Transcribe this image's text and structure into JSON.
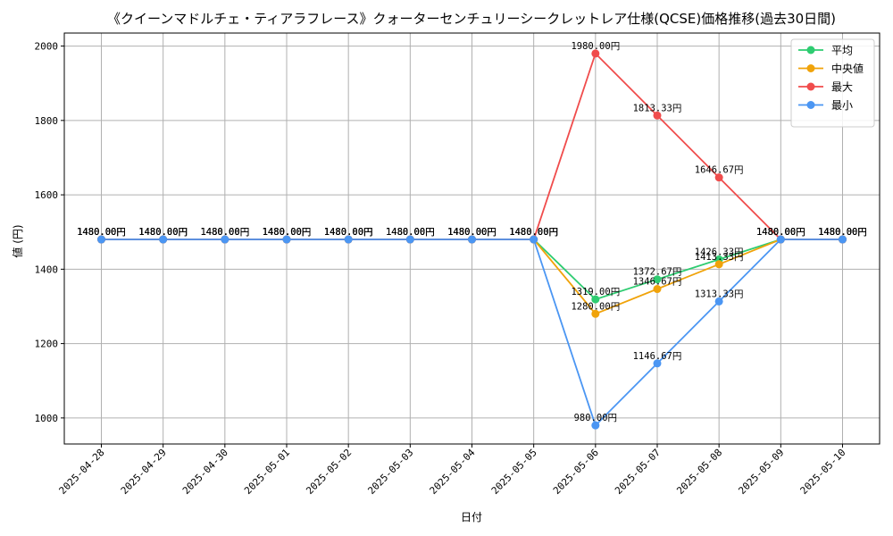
{
  "chart_data": {
    "type": "line",
    "title": "《クイーンマドルチェ・ティアラフレース》クォーターセンチュリーシークレットレア仕様(QCSE)価格推移(過去30日間)",
    "xlabel": "日付",
    "ylabel": "値 (円)",
    "ylim": [
      930,
      2035
    ],
    "yticks": [
      1000,
      1200,
      1400,
      1600,
      1800,
      2000
    ],
    "grid": true,
    "legend_position": "top-right",
    "categories": [
      "2025-04-28",
      "2025-04-29",
      "2025-04-30",
      "2025-05-01",
      "2025-05-02",
      "2025-05-03",
      "2025-05-04",
      "2025-05-05",
      "2025-05-06",
      "2025-05-07",
      "2025-05-08",
      "2025-05-09",
      "2025-05-10"
    ],
    "series": [
      {
        "name": "平均",
        "color": "#2ecc71",
        "values": [
          1480,
          1480,
          1480,
          1480,
          1480,
          1480,
          1480,
          1480,
          1319,
          1372.67,
          1426.33,
          1480,
          1480
        ],
        "labels": [
          "1480.00円",
          "1480.00円",
          "1480.00円",
          "1480.00円",
          "1480.00円",
          "1480.00円",
          "1480.00円",
          "1480.00円",
          "1319.00円",
          "1372.67円",
          "1426.33円",
          "1480.00円",
          "1480.00円"
        ]
      },
      {
        "name": "中央値",
        "color": "#f0a30a",
        "values": [
          1480,
          1480,
          1480,
          1480,
          1480,
          1480,
          1480,
          1480,
          1280,
          1346.67,
          1413.33,
          1480,
          1480
        ],
        "labels": [
          "1480.00円",
          "1480.00円",
          "1480.00円",
          "1480.00円",
          "1480.00円",
          "1480.00円",
          "1480.00円",
          "1480.00円",
          "1280.00円",
          "1346.67円",
          "1413.33円",
          "1480.00円",
          "1480.00円"
        ]
      },
      {
        "name": "最大",
        "color": "#f04c4c",
        "values": [
          1480,
          1480,
          1480,
          1480,
          1480,
          1480,
          1480,
          1480,
          1980,
          1813.33,
          1646.67,
          1480,
          1480
        ],
        "labels": [
          "1480.00円",
          "1480.00円",
          "1480.00円",
          "1480.00円",
          "1480.00円",
          "1480.00円",
          "1480.00円",
          "1480.00円",
          "1980.00円",
          "1813.33円",
          "1646.67円",
          "1480.00円",
          "1480.00円"
        ]
      },
      {
        "name": "最小",
        "color": "#4b96f3",
        "values": [
          1480,
          1480,
          1480,
          1480,
          1480,
          1480,
          1480,
          1480,
          980,
          1146.67,
          1313.33,
          1480,
          1480
        ],
        "labels": [
          "1480.00円",
          "1480.00円",
          "1480.00円",
          "1480.00円",
          "1480.00円",
          "1480.00円",
          "1480.00円",
          "1480.00円",
          "980.00円",
          "1146.67円",
          "1313.33円",
          "1480.00円",
          "1480.00円"
        ]
      }
    ]
  }
}
